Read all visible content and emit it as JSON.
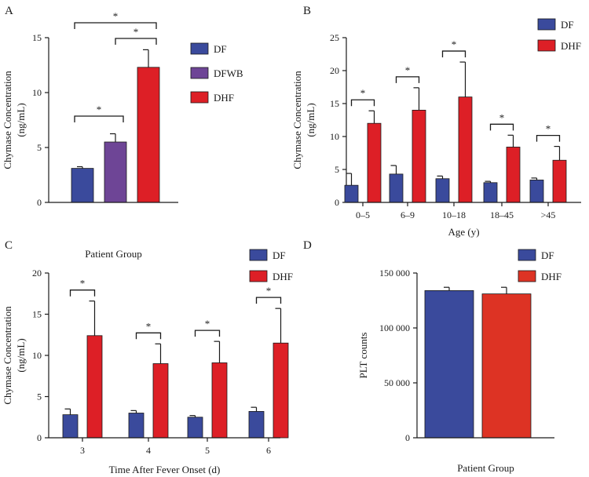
{
  "colors": {
    "DF": "#3a4a9c",
    "DFWB": "#6e4596",
    "DHF": "#dd1f26",
    "DHF_D": "#dd3324",
    "axis": "#1a1a1a",
    "error": "#1a1a1a"
  },
  "chart_data": [
    {
      "panel": "A",
      "type": "bar",
      "title": "",
      "xlabel": "Patient Group",
      "ylabel": "Chymase Concentration (ng/mL)",
      "ylim": [
        0,
        15
      ],
      "yticks": [
        0,
        5,
        10,
        15
      ],
      "ytick_labels": [
        "0",
        "5",
        "10",
        "15"
      ],
      "categories": [
        "DF",
        "DFWB",
        "DHF"
      ],
      "values": [
        3.1,
        5.5,
        12.3
      ],
      "errors": [
        0.15,
        0.75,
        1.6
      ],
      "legend": [
        "DF",
        "DFWB",
        "DHF"
      ],
      "significance": [
        {
          "from": 0,
          "to": 1,
          "label": "*"
        },
        {
          "from": 1,
          "to": 2,
          "label": "*"
        },
        {
          "from": 0,
          "to": 2,
          "label": "*"
        }
      ]
    },
    {
      "panel": "B",
      "type": "bar",
      "title": "",
      "xlabel": "Age (y)",
      "ylabel": "Chymase Concentration (ng/mL)",
      "ylim": [
        0,
        25
      ],
      "yticks": [
        0,
        5,
        10,
        15,
        20,
        25
      ],
      "ytick_labels": [
        "0",
        "5",
        "10",
        "15",
        "20",
        "25"
      ],
      "categories": [
        "0–5",
        "6–9",
        "10–18",
        "18–45",
        ">45"
      ],
      "series": [
        {
          "name": "DF",
          "values": [
            2.6,
            4.3,
            3.6,
            3.0,
            3.4
          ],
          "errors": [
            1.8,
            1.3,
            0.4,
            0.2,
            0.3
          ]
        },
        {
          "name": "DHF",
          "values": [
            12.0,
            14.0,
            16.0,
            8.4,
            6.4
          ],
          "errors": [
            1.9,
            3.4,
            5.3,
            1.8,
            2.1
          ]
        }
      ],
      "legend": [
        "DF",
        "DHF"
      ],
      "significance_label": "*"
    },
    {
      "panel": "C",
      "type": "bar",
      "title": "",
      "xlabel": "Time After Fever Onset (d)",
      "ylabel": "Chymase Concentration (ng/mL)",
      "ylim": [
        0,
        20
      ],
      "yticks": [
        0,
        5,
        10,
        15,
        20
      ],
      "ytick_labels": [
        "0",
        "5",
        "10",
        "15",
        "20"
      ],
      "categories": [
        "3",
        "4",
        "5",
        "6"
      ],
      "series": [
        {
          "name": "DF",
          "values": [
            2.8,
            3.0,
            2.5,
            3.2
          ],
          "errors": [
            0.7,
            0.3,
            0.2,
            0.5
          ]
        },
        {
          "name": "DHF",
          "values": [
            12.4,
            9.0,
            9.1,
            11.5
          ],
          "errors": [
            4.2,
            2.4,
            2.6,
            4.2
          ]
        }
      ],
      "legend": [
        "DF",
        "DHF"
      ],
      "significance_label": "*"
    },
    {
      "panel": "D",
      "type": "bar",
      "title": "",
      "xlabel": "Patient Group",
      "ylabel": "PLT counts",
      "ylim": [
        0,
        150000
      ],
      "yticks": [
        0,
        50000,
        100000,
        150000
      ],
      "ytick_labels": [
        "0",
        "50 000",
        "100 000",
        "150 000"
      ],
      "categories": [
        "DF",
        "DHF"
      ],
      "values": [
        134000,
        131000
      ],
      "errors": [
        3000,
        6000
      ],
      "legend": [
        "DF",
        "DHF"
      ]
    }
  ]
}
